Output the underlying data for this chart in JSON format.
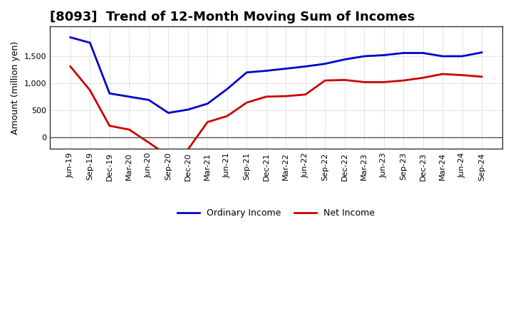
{
  "title": "[8093]  Trend of 12-Month Moving Sum of Incomes",
  "ylabel": "Amount (million yen)",
  "x_labels": [
    "Jun-19",
    "Sep-19",
    "Dec-19",
    "Mar-20",
    "Jun-20",
    "Sep-20",
    "Dec-20",
    "Mar-21",
    "Jun-21",
    "Sep-21",
    "Dec-21",
    "Mar-22",
    "Jun-22",
    "Sep-22",
    "Dec-22",
    "Mar-23",
    "Jun-23",
    "Sep-23",
    "Dec-23",
    "Mar-24",
    "Jun-24",
    "Sep-24"
  ],
  "ordinary_income": [
    1850,
    1750,
    810,
    750,
    690,
    450,
    510,
    620,
    890,
    1200,
    1230,
    1270,
    1310,
    1360,
    1440,
    1500,
    1520,
    1560,
    1560,
    1500,
    1500,
    1570
  ],
  "net_income": [
    1310,
    870,
    210,
    140,
    -100,
    -350,
    -230,
    280,
    390,
    640,
    750,
    760,
    790,
    1050,
    1060,
    1020,
    1020,
    1050,
    1100,
    1170,
    1150,
    1120
  ],
  "ordinary_color": "#0000cc",
  "net_color": "#cc0000",
  "ylim_min": -220,
  "ylim_max": 2050,
  "yticks": [
    0,
    500,
    1000,
    1500
  ],
  "bg_color": "#ffffff",
  "plot_bg_color": "#ffffff",
  "grid_color": "#999999",
  "line_width": 2.0,
  "legend_labels": [
    "Ordinary Income",
    "Net Income"
  ],
  "title_fontsize": 13,
  "ylabel_fontsize": 9,
  "tick_fontsize": 8
}
